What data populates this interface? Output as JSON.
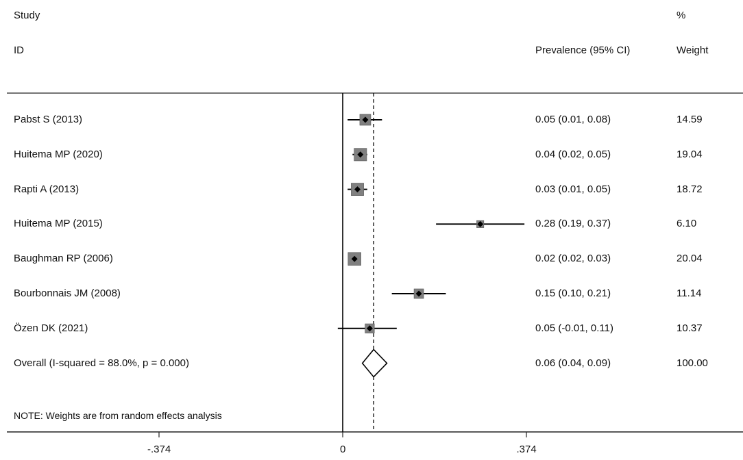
{
  "header": {
    "study": "Study",
    "id": "ID",
    "prevalence": "Prevalence (95% CI)",
    "pct": "%",
    "weight": "Weight"
  },
  "note": "NOTE: Weights are from random effects analysis",
  "chart_data": {
    "type": "forest",
    "x_ticks": [
      {
        "value": -0.374,
        "label": "-.374"
      },
      {
        "value": 0,
        "label": "0"
      },
      {
        "value": 0.374,
        "label": ".374"
      }
    ],
    "reference_line": 0,
    "overall_line": 0.063,
    "studies": [
      {
        "label": "Pabst S (2013)",
        "est": 0.046,
        "lo": 0.01,
        "hi": 0.08,
        "ci_text": "0.05 (0.01, 0.08)",
        "weight": 14.59,
        "weight_text": "14.59"
      },
      {
        "label": "Huitema MP (2020)",
        "est": 0.036,
        "lo": 0.02,
        "hi": 0.05,
        "ci_text": "0.04 (0.02, 0.05)",
        "weight": 19.04,
        "weight_text": "19.04"
      },
      {
        "label": "Rapti A (2013)",
        "est": 0.03,
        "lo": 0.01,
        "hi": 0.05,
        "ci_text": "0.03 (0.01, 0.05)",
        "weight": 18.72,
        "weight_text": "18.72"
      },
      {
        "label": "Huitema MP (2015)",
        "est": 0.28,
        "lo": 0.19,
        "hi": 0.37,
        "ci_text": "0.28 (0.19, 0.37)",
        "weight": 6.1,
        "weight_text": "6.10"
      },
      {
        "label": "Baughman RP (2006)",
        "est": 0.024,
        "lo": 0.02,
        "hi": 0.03,
        "ci_text": "0.02 (0.02, 0.03)",
        "weight": 20.04,
        "weight_text": "20.04"
      },
      {
        "label": "Bourbonnais JM (2008)",
        "est": 0.155,
        "lo": 0.1,
        "hi": 0.21,
        "ci_text": "0.15 (0.10, 0.21)",
        "weight": 11.14,
        "weight_text": "11.14"
      },
      {
        "label": "Özen DK (2021)",
        "est": 0.055,
        "lo": -0.01,
        "hi": 0.11,
        "ci_text": "0.05 (-0.01, 0.11)",
        "weight": 10.37,
        "weight_text": "10.37"
      }
    ],
    "overall": {
      "label": "Overall  (I-squared = 88.0%, p = 0.000)",
      "est": 0.063,
      "lo": 0.04,
      "hi": 0.09,
      "ci_text": "0.06 (0.04, 0.09)",
      "weight_text": "100.00"
    }
  }
}
